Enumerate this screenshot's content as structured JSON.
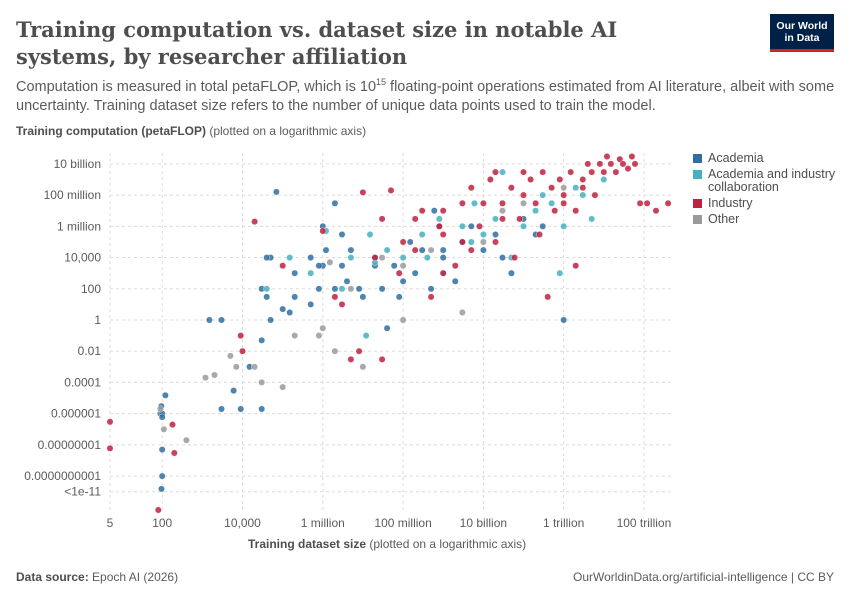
{
  "header": {
    "title": "Training computation vs. dataset size in notable AI systems, by researcher affiliation",
    "subtitle_pre": "Computation is measured in total petaFLOP, which is 10",
    "subtitle_sup": "15",
    "subtitle_post": " floating-point operations estimated from AI literature, albeit with some uncertainty. Training dataset size refers to the number of unique data points used to train the model.",
    "logo_line1": "Our World",
    "logo_line2": "in Data"
  },
  "axes": {
    "y_label_bold": "Training computation (petaFLOP)",
    "y_label_rest": " (plotted on a logarithmic axis)",
    "x_label_bold": "Training dataset size",
    "x_label_rest": " (plotted on a logarithmic axis)"
  },
  "footer": {
    "source_label": "Data source:",
    "source_value": " Epoch AI (2026)",
    "right": "OurWorldinData.org/artificial-intelligence | CC BY"
  },
  "colors": {
    "Academia": "#2f6f9f",
    "Academia and industry collaboration": "#45b0bf",
    "Industry": "#c0213f",
    "Other": "#9a9a9a"
  },
  "chart_data": {
    "type": "scatter",
    "x_scale": "log",
    "y_scale": "log",
    "xlim": [
      5,
      500000000000000
    ],
    "ylim": [
      5e-13,
      50000000000.0
    ],
    "x_ticks": [
      {
        "value": 5,
        "label": "5"
      },
      {
        "value": 100,
        "label": "100"
      },
      {
        "value": 10000,
        "label": "10,000"
      },
      {
        "value": 1000000,
        "label": "1 million"
      },
      {
        "value": 100000000,
        "label": "100 million"
      },
      {
        "value": 10000000000,
        "label": "10 billion"
      },
      {
        "value": 1000000000000,
        "label": "1 trillion"
      },
      {
        "value": 100000000000000,
        "label": "100 trillion"
      }
    ],
    "y_ticks": [
      {
        "value": 10000000000,
        "label": "10 billion"
      },
      {
        "value": 100000000,
        "label": "100 million"
      },
      {
        "value": 1000000,
        "label": "1 million"
      },
      {
        "value": 10000,
        "label": "10,000"
      },
      {
        "value": 100,
        "label": "100"
      },
      {
        "value": 1,
        "label": "1"
      },
      {
        "value": 0.01,
        "label": "0.01"
      },
      {
        "value": 0.0001,
        "label": "0.0001"
      },
      {
        "value": 1e-06,
        "label": "0.000001"
      },
      {
        "value": 1e-08,
        "label": "0.00000001"
      },
      {
        "value": 1e-10,
        "label": "0.0000000001"
      },
      {
        "value": 1e-11,
        "label": "<1e-11"
      }
    ],
    "grid": true,
    "legend_position": "right",
    "series": [
      {
        "name": "Academia",
        "points": [
          [
            90,
            1e-06
          ],
          [
            95,
            3e-06
          ],
          [
            100,
            1e-06
          ],
          [
            100,
            6e-07
          ],
          [
            120,
            1.5e-05
          ],
          [
            100,
            5e-09
          ],
          [
            100,
            1e-10
          ],
          [
            96,
            1.5e-11
          ],
          [
            3000,
            2e-06
          ],
          [
            30000,
            2e-06
          ],
          [
            9000,
            2e-06
          ],
          [
            6000,
            3e-05
          ],
          [
            15000,
            0.001
          ],
          [
            30000,
            0.05
          ],
          [
            50000,
            1
          ],
          [
            3000,
            1
          ],
          [
            1500,
            1
          ],
          [
            30000,
            100
          ],
          [
            40000,
            30
          ],
          [
            100000,
            5
          ],
          [
            50000,
            10000
          ],
          [
            150000,
            3
          ],
          [
            200000,
            30
          ],
          [
            500000,
            10
          ],
          [
            800000,
            100
          ],
          [
            1000000,
            3000
          ],
          [
            1200000,
            30000
          ],
          [
            1000000,
            1000000
          ],
          [
            2000000,
            100
          ],
          [
            4000000,
            300
          ],
          [
            3000000,
            3000
          ],
          [
            5000000,
            30000
          ],
          [
            8000000,
            100
          ],
          [
            10000000,
            30
          ],
          [
            20000000,
            3000
          ],
          [
            30000000,
            100
          ],
          [
            40000000,
            0.3
          ],
          [
            60000000,
            3000
          ],
          [
            80000000,
            30
          ],
          [
            100000000,
            300
          ],
          [
            200000000,
            1000
          ],
          [
            300000000,
            30000
          ],
          [
            500000000,
            100
          ],
          [
            800000000,
            1000000
          ],
          [
            1000000000,
            30000
          ],
          [
            2000000000,
            300
          ],
          [
            3000000000,
            100000
          ],
          [
            5000000000,
            1000000
          ],
          [
            10000000000,
            30000
          ],
          [
            20000000000,
            300000
          ],
          [
            30000000000,
            10000
          ],
          [
            50000000000,
            1000
          ],
          [
            100000000000,
            3000000
          ],
          [
            200000000000,
            300000
          ],
          [
            300000000000,
            1000000
          ],
          [
            1000000000000,
            1
          ],
          [
            70000,
            160000000.0
          ],
          [
            2000000,
            30000000
          ],
          [
            3000000,
            300000
          ],
          [
            20000000,
            10000
          ],
          [
            600000000,
            10000000
          ],
          [
            150000000,
            100000
          ],
          [
            40000,
            10000
          ],
          [
            200000,
            1000
          ],
          [
            1000000000,
            10000
          ],
          [
            800000,
            3000
          ],
          [
            500000,
            10000
          ]
        ]
      },
      {
        "name": "Academia and industry collaboration",
        "points": [
          [
            40000,
            100
          ],
          [
            150000,
            10000
          ],
          [
            500000,
            1000
          ],
          [
            1200000,
            500000
          ],
          [
            3000000,
            100
          ],
          [
            5000000,
            10000
          ],
          [
            20000000,
            5000
          ],
          [
            40000000,
            30000
          ],
          [
            100000000,
            10000
          ],
          [
            300000000,
            300000
          ],
          [
            800000000,
            3000000
          ],
          [
            1000000000,
            1000
          ],
          [
            3000000000,
            1000000
          ],
          [
            5000000000,
            100000
          ],
          [
            10000000000,
            300000
          ],
          [
            20000000000,
            3000000
          ],
          [
            30000000000,
            3000000000.0
          ],
          [
            50000000000,
            10000
          ],
          [
            100000000000,
            1000000
          ],
          [
            200000000000,
            10000000
          ],
          [
            300000000000,
            100000000
          ],
          [
            500000000000,
            30000000
          ],
          [
            800000000000,
            1000
          ],
          [
            1000000000000,
            1000000
          ],
          [
            2000000000000,
            300000000
          ],
          [
            3000000000000,
            100000000
          ],
          [
            5000000000000,
            3000000
          ],
          [
            10000000000000,
            1000000000
          ],
          [
            12000000,
            0.1
          ],
          [
            15000000,
            300000
          ],
          [
            6000000000,
            30000000
          ],
          [
            400000000,
            10000
          ]
        ]
      },
      {
        "name": "Industry",
        "points": [
          [
            5,
            3e-07
          ],
          [
            5,
            6e-09
          ],
          [
            80,
            3e-13
          ],
          [
            180,
            2e-07
          ],
          [
            200,
            3e-09
          ],
          [
            9000,
            0.1
          ],
          [
            10000,
            0.01
          ],
          [
            20000,
            2000000.0
          ],
          [
            100000,
            3000
          ],
          [
            1000000,
            500000
          ],
          [
            2000000,
            30
          ],
          [
            3000000,
            10
          ],
          [
            5000000,
            0.003
          ],
          [
            8000000,
            0.01
          ],
          [
            10000000,
            150000000.0
          ],
          [
            20000000,
            10000
          ],
          [
            30000000,
            3000000
          ],
          [
            50000000,
            200000000.0
          ],
          [
            80000000,
            1000
          ],
          [
            100000000,
            100000
          ],
          [
            200000000,
            30000
          ],
          [
            300000000,
            10000000
          ],
          [
            500000000,
            30
          ],
          [
            800000000,
            1000000
          ],
          [
            1000000000,
            10000000
          ],
          [
            2000000000,
            3000
          ],
          [
            3000000000,
            100000
          ],
          [
            5000000000,
            30000
          ],
          [
            8000000000,
            1000000
          ],
          [
            10000000000,
            30000000
          ],
          [
            15000000000,
            1000000000.0
          ],
          [
            20000000000,
            100000
          ],
          [
            30000000000,
            3000000
          ],
          [
            50000000000,
            300000000
          ],
          [
            60000000000,
            10000
          ],
          [
            80000000000,
            3000000
          ],
          [
            100000000000,
            100000000
          ],
          [
            150000000000,
            1000000000
          ],
          [
            200000000000,
            30000000
          ],
          [
            250000000000,
            300000
          ],
          [
            300000000000,
            3000000000
          ],
          [
            400000000000,
            30
          ],
          [
            500000000000,
            300000000
          ],
          [
            600000000000,
            10000000
          ],
          [
            800000000000,
            1000000000
          ],
          [
            1000000000000,
            100000000
          ],
          [
            1500000000000,
            3000000000
          ],
          [
            2000000000000,
            10000000
          ],
          [
            3000000000000,
            1000000000
          ],
          [
            4000000000000,
            10000000000
          ],
          [
            5000000000000,
            3000000000
          ],
          [
            6000000000000,
            100000000
          ],
          [
            8000000000000,
            10000000000
          ],
          [
            10000000000000,
            3000000000
          ],
          [
            12000000000000,
            30000000000
          ],
          [
            15000000000000,
            10000000000
          ],
          [
            20000000000000,
            3000000000
          ],
          [
            25000000000000,
            20000000000
          ],
          [
            30000000000000,
            10000000000
          ],
          [
            40000000000000,
            5000000000
          ],
          [
            50000000000000,
            30000000000
          ],
          [
            60000000000000,
            10000000000
          ],
          [
            80000000000000,
            30000000
          ],
          [
            120000000000000,
            30000000
          ],
          [
            200000000000000,
            10000000
          ],
          [
            400000000000000,
            30000000
          ],
          [
            2000000000000,
            3000
          ],
          [
            20000000000,
            3000000000
          ],
          [
            5000000000,
            300000000
          ],
          [
            1000000000,
            300000
          ],
          [
            1000000000,
            1000
          ],
          [
            30000000000,
            30000000
          ],
          [
            100000000000,
            3000000000
          ],
          [
            1000000000000,
            30000000
          ],
          [
            3000000000000,
            300000000
          ],
          [
            30000000,
            0.003
          ],
          [
            200000000,
            3000000
          ],
          [
            3000000000,
            30000000
          ]
        ]
      },
      {
        "name": "Other",
        "points": [
          [
            90,
            2e-06
          ],
          [
            110,
            1e-07
          ],
          [
            400,
            2e-08
          ],
          [
            1200,
            0.0002
          ],
          [
            2000,
            0.0003
          ],
          [
            5000,
            0.005
          ],
          [
            7000,
            0.001
          ],
          [
            20000,
            0.001
          ],
          [
            30000,
            0.0001
          ],
          [
            100000,
            5e-05
          ],
          [
            200000,
            0.1
          ],
          [
            800000,
            0.1
          ],
          [
            1000000,
            0.3
          ],
          [
            1500000,
            5000
          ],
          [
            5000000,
            100
          ],
          [
            10000000,
            0.001
          ],
          [
            30000000,
            10000
          ],
          [
            100000000,
            3000
          ],
          [
            500000000,
            30000
          ],
          [
            3000000000,
            3
          ],
          [
            10000000000,
            100000
          ],
          [
            30000000000,
            10000000
          ],
          [
            100000000000,
            30000000
          ],
          [
            1000000000000,
            300000000
          ],
          [
            100000000,
            1
          ],
          [
            2000000,
            0.01
          ]
        ]
      }
    ]
  }
}
